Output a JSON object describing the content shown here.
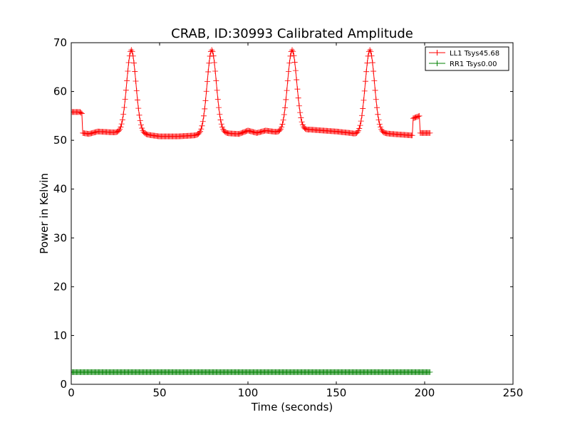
{
  "chart_data": {
    "type": "line",
    "title": "CRAB, ID:30993 Calibrated Amplitude",
    "xlabel": "Time (seconds)",
    "ylabel": "Power in Kelvin",
    "xlim": [
      0,
      250
    ],
    "ylim": [
      0,
      70
    ],
    "xticks": [
      0,
      50,
      100,
      150,
      200,
      250
    ],
    "yticks": [
      0,
      10,
      20,
      30,
      40,
      50,
      60,
      70
    ],
    "grid": false,
    "legend_position": "top-right",
    "marker": "+",
    "series": [
      {
        "name": "LL1 Tsys45.68",
        "color": "#ff0000",
        "peaks": [
          {
            "center": 34,
            "height": 68.5,
            "width": 2.6
          },
          {
            "center": 79.5,
            "height": 68.5,
            "width": 2.6
          },
          {
            "center": 125,
            "height": 68.5,
            "width": 2.6
          },
          {
            "center": 169,
            "height": 68.5,
            "width": 2.6
          }
        ],
        "baseline": [
          [
            0,
            55.8
          ],
          [
            5,
            55.8
          ],
          [
            6,
            55.5
          ],
          [
            6.5,
            51.5
          ],
          [
            10,
            51.3
          ],
          [
            15,
            51.8
          ],
          [
            25,
            51.6
          ],
          [
            40,
            51.3
          ],
          [
            50,
            50.8
          ],
          [
            60,
            50.8
          ],
          [
            70,
            51.0
          ],
          [
            85,
            51.5
          ],
          [
            95,
            51.3
          ],
          [
            100,
            52.0
          ],
          [
            105,
            51.5
          ],
          [
            110,
            52.0
          ],
          [
            120,
            51.5
          ],
          [
            135,
            52.2
          ],
          [
            150,
            51.8
          ],
          [
            158,
            51.5
          ],
          [
            162,
            51.2
          ],
          [
            175,
            51.5
          ],
          [
            185,
            51.2
          ],
          [
            193,
            51.0
          ],
          [
            193.5,
            54.5
          ],
          [
            197,
            55.0
          ],
          [
            197.5,
            51.5
          ],
          [
            203,
            51.5
          ]
        ],
        "x_range": [
          0,
          203
        ],
        "step": 0.5
      },
      {
        "name": "RR1 Tsys0.00",
        "color": "#008000",
        "value": 2.5,
        "x_range": [
          0,
          203
        ],
        "step": 0.5
      }
    ]
  }
}
